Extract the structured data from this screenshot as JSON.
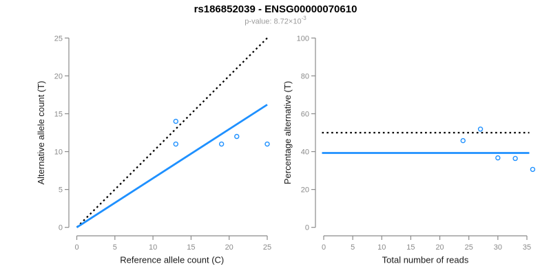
{
  "header": {
    "title": "rs186852039 - ENSG00000070610",
    "subtitle_prefix": "p-value: 8.72×10",
    "subtitle_exponent": "-3"
  },
  "colors": {
    "accent_blue": "#1E90FF",
    "dotted_line": "#000000",
    "axis": "#8a8a8a",
    "tick_label": "#8a8a8a",
    "axis_title": "#1a1a1a",
    "title_color": "#000000",
    "subtitle_gray": "#9b9b9b",
    "background": "#ffffff"
  },
  "chart_data": [
    {
      "type": "scatter",
      "xlabel": "Reference allele count (C)",
      "ylabel": "Alternative allele count (T)",
      "xlim": [
        0,
        25
      ],
      "ylim": [
        0,
        25
      ],
      "xticks": [
        0,
        5,
        10,
        15,
        20,
        25
      ],
      "yticks": [
        0,
        5,
        10,
        15,
        20,
        25
      ],
      "grid": false,
      "points": [
        [
          13,
          14
        ],
        [
          13,
          11
        ],
        [
          19,
          11
        ],
        [
          21,
          12
        ],
        [
          25,
          11
        ]
      ],
      "lines": [
        {
          "name": "identity",
          "style": "dotted",
          "color": "#000000",
          "from": [
            0,
            0
          ],
          "to": [
            25,
            25
          ]
        },
        {
          "name": "fit",
          "style": "solid",
          "color": "#1E90FF",
          "from": [
            0,
            0
          ],
          "to": [
            25,
            16.2
          ]
        }
      ]
    },
    {
      "type": "scatter",
      "xlabel": "Total number of reads",
      "ylabel": "Percentage alternative (T)",
      "xlim": [
        0,
        35
      ],
      "ylim": [
        0,
        100
      ],
      "xticks": [
        0,
        5,
        10,
        15,
        20,
        25,
        30,
        35
      ],
      "yticks": [
        0,
        20,
        40,
        60,
        80,
        100
      ],
      "grid": false,
      "points": [
        [
          24,
          45.8
        ],
        [
          27,
          51.9
        ],
        [
          30,
          36.7
        ],
        [
          33,
          36.4
        ],
        [
          36,
          30.6
        ]
      ],
      "lines": [
        {
          "name": "expected-50pct",
          "style": "dotted",
          "color": "#000000",
          "y": 50
        },
        {
          "name": "observed-ratio",
          "style": "solid",
          "color": "#1E90FF",
          "y": 39.3
        }
      ]
    }
  ]
}
